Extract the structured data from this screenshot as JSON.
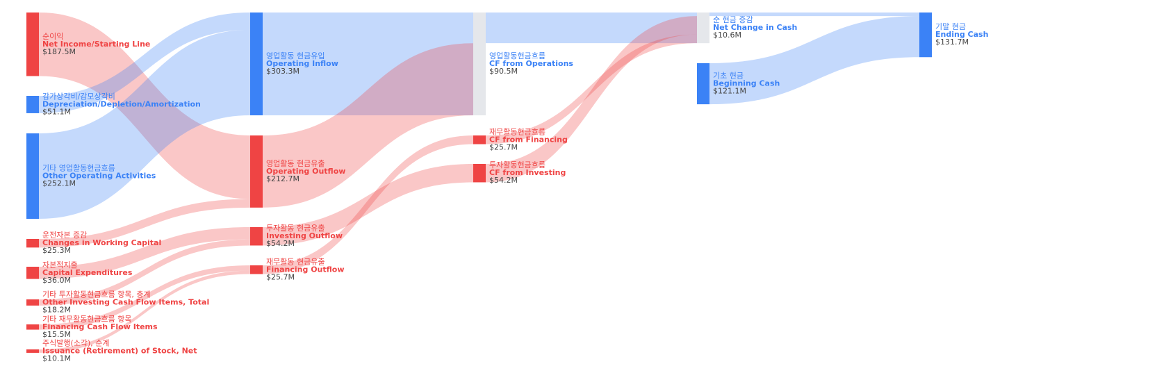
{
  "chart_data": {
    "type": "sankey",
    "nodes": [
      {
        "name_ko": "순이익",
        "name_en": "Net Income/Starting Line",
        "value": 187.5,
        "value_label": "$187.5M",
        "color": "#ef4444",
        "text_color": "#ef4444"
      },
      {
        "name_ko": "감가상각비/감모상각비",
        "name_en": "Depreciation/Depletion/Amortization",
        "value": 51.1,
        "value_label": "$51.1M",
        "color": "#3b82f6",
        "text_color": "#3b82f6"
      },
      {
        "name_ko": "기타 영업활동현금흐름",
        "name_en": "Other Operating Activities",
        "value": 252.1,
        "value_label": "$252.1M",
        "color": "#3b82f6",
        "text_color": "#3b82f6"
      },
      {
        "name_ko": "운전자본 증감",
        "name_en": "Changes in Working Capital",
        "value": 25.3,
        "value_label": "$25.3M",
        "color": "#ef4444",
        "text_color": "#ef4444"
      },
      {
        "name_ko": "자본적지출",
        "name_en": "Capital Expenditures",
        "value": 36.0,
        "value_label": "$36.0M",
        "color": "#ef4444",
        "text_color": "#ef4444"
      },
      {
        "name_ko": "기타 투자활동현금흐름 항목, 총계",
        "name_en": "Other Investing Cash Flow Items, Total",
        "value": 18.2,
        "value_label": "$18.2M",
        "color": "#ef4444",
        "text_color": "#ef4444"
      },
      {
        "name_ko": "기타 재무활동현금흐름 항목",
        "name_en": "Financing Cash Flow Items",
        "value": 15.5,
        "value_label": "$15.5M",
        "color": "#ef4444",
        "text_color": "#ef4444"
      },
      {
        "name_ko": "주식발행(소각), 순계",
        "name_en": "Issuance (Retirement) of Stock, Net",
        "value": 10.1,
        "value_label": "$10.1M",
        "color": "#ef4444",
        "text_color": "#ef4444"
      },
      {
        "name_ko": "영업활동 현금유입",
        "name_en": "Operating Inflow",
        "value": 303.3,
        "value_label": "$303.3M",
        "color": "#3b82f6",
        "text_color": "#3b82f6"
      },
      {
        "name_ko": "영업활동 현금유출",
        "name_en": "Operating Outflow",
        "value": 212.7,
        "value_label": "$212.7M",
        "color": "#ef4444",
        "text_color": "#ef4444"
      },
      {
        "name_ko": "투자활동 현금유출",
        "name_en": "Investing Outflow",
        "value": 54.2,
        "value_label": "$54.2M",
        "color": "#ef4444",
        "text_color": "#ef4444"
      },
      {
        "name_ko": "재무활동 현금유출",
        "name_en": "Financing Outflow",
        "value": 25.7,
        "value_label": "$25.7M",
        "color": "#ef4444",
        "text_color": "#ef4444"
      },
      {
        "name_ko": "영업활동현금흐름",
        "name_en": "CF from Operations",
        "value": 90.5,
        "value_label": "$90.5M",
        "color": "#e5e7eb",
        "text_color": "#3b82f6"
      },
      {
        "name_ko": "재무활동현금흐름",
        "name_en": "CF from Financing",
        "value": 25.7,
        "value_label": "$25.7M",
        "color": "#ef4444",
        "text_color": "#ef4444"
      },
      {
        "name_ko": "투자활동현금흐름",
        "name_en": "CF from Investing",
        "value": 54.2,
        "value_label": "$54.2M",
        "color": "#ef4444",
        "text_color": "#ef4444"
      },
      {
        "name_ko": "순 현금 증감",
        "name_en": "Net Change in Cash",
        "value": 10.6,
        "value_label": "$10.6M",
        "color": "#e5e7eb",
        "text_color": "#3b82f6"
      },
      {
        "name_ko": "기초 현금",
        "name_en": "Beginning Cash",
        "value": 121.1,
        "value_label": "$121.1M",
        "color": "#3b82f6",
        "text_color": "#3b82f6"
      },
      {
        "name_ko": "기말 현금",
        "name_en": "Ending Cash",
        "value": 131.7,
        "value_label": "$131.7M",
        "color": "#3b82f6",
        "text_color": "#3b82f6"
      }
    ],
    "links": [
      {
        "source": 0,
        "target": 9,
        "value": 187.5,
        "color": "#ef4444"
      },
      {
        "source": 1,
        "target": 8,
        "value": 51.1,
        "color": "#3b82f6"
      },
      {
        "source": 2,
        "target": 8,
        "value": 252.1,
        "color": "#3b82f6"
      },
      {
        "source": 3,
        "target": 9,
        "value": 25.3,
        "color": "#ef4444"
      },
      {
        "source": 4,
        "target": 10,
        "value": 36.0,
        "color": "#ef4444"
      },
      {
        "source": 5,
        "target": 10,
        "value": 18.2,
        "color": "#ef4444"
      },
      {
        "source": 6,
        "target": 11,
        "value": 15.5,
        "color": "#ef4444"
      },
      {
        "source": 7,
        "target": 11,
        "value": 10.1,
        "color": "#ef4444"
      },
      {
        "source": 8,
        "target": 12,
        "value": 303.3,
        "color": "#3b82f6"
      },
      {
        "source": 9,
        "target": 12,
        "value": 212.7,
        "color": "#ef4444"
      },
      {
        "source": 10,
        "target": 14,
        "value": 54.2,
        "color": "#ef4444"
      },
      {
        "source": 11,
        "target": 13,
        "value": 25.7,
        "color": "#ef4444"
      },
      {
        "source": 12,
        "target": 15,
        "value": 90.5,
        "color": "#3b82f6"
      },
      {
        "source": 13,
        "target": 15,
        "value": 25.7,
        "color": "#ef4444"
      },
      {
        "source": 14,
        "target": 15,
        "value": 54.2,
        "color": "#ef4444"
      },
      {
        "source": 15,
        "target": 17,
        "value": 10.6,
        "color": "#3b82f6"
      },
      {
        "source": 16,
        "target": 17,
        "value": 121.1,
        "color": "#3b82f6"
      }
    ]
  }
}
